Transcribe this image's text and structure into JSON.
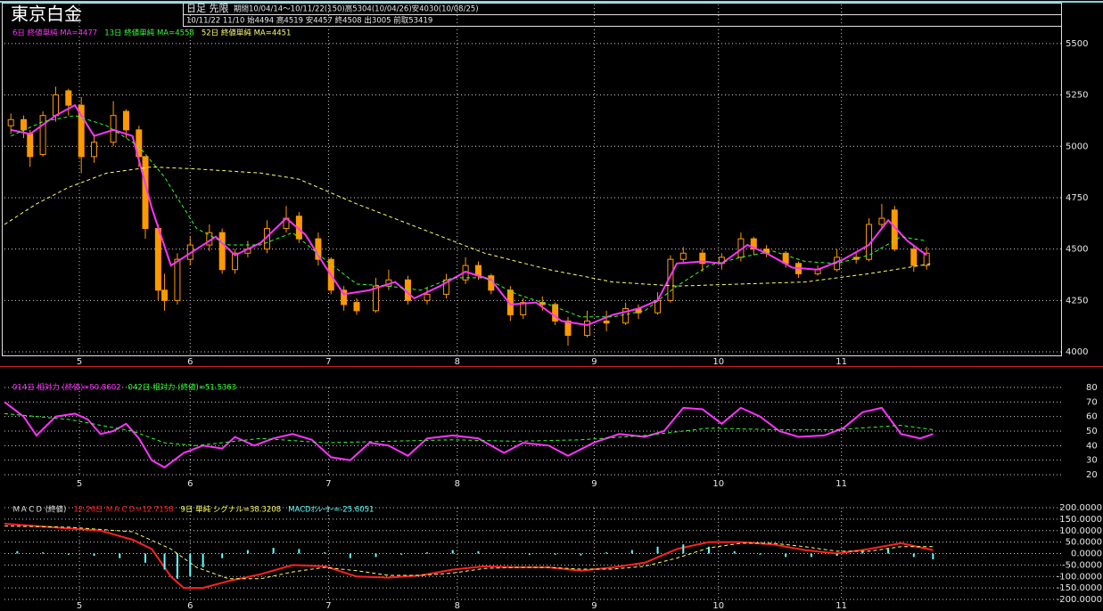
{
  "header": {
    "title": "東京白金",
    "mode": "日足 先限",
    "period": "期間10/04/14～10/11/22(150)高5304(10/04/26)安4030(10/08/25)",
    "quote": "10/11/22 11/10 始4494 高4519 安4457 終4508 出3005 前取53419"
  },
  "chart_data": [
    {
      "type": "candlestick",
      "color": "#ff9900",
      "grid": true,
      "xlim": [
        0,
        165
      ],
      "ylim": [
        3987,
        5582
      ],
      "xticks": [
        {
          "value": 11.7,
          "label": "5"
        },
        {
          "value": 29,
          "label": "6"
        },
        {
          "value": 50.6,
          "label": "7"
        },
        {
          "value": 70.7,
          "label": "8"
        },
        {
          "value": 92.1,
          "label": "9"
        },
        {
          "value": 111.5,
          "label": "10"
        },
        {
          "value": 130.7,
          "label": "11"
        }
      ],
      "yticks": [
        4000,
        4250,
        4500,
        4750,
        5000,
        5250,
        5500
      ],
      "x": [
        1,
        3,
        4,
        6,
        8,
        10,
        12,
        14,
        17,
        19,
        21,
        22,
        24,
        25,
        27,
        29,
        32,
        34,
        36,
        38,
        41,
        44,
        46,
        49,
        51,
        53,
        55,
        58,
        60,
        63,
        66,
        69,
        72,
        74,
        76,
        79,
        81,
        84,
        86,
        88,
        91,
        94,
        97,
        99,
        102,
        104,
        106,
        109,
        112,
        115,
        117,
        119,
        122,
        124,
        127,
        130,
        133,
        135,
        137,
        139,
        142,
        144
      ],
      "open": [
        5100,
        5130,
        5060,
        4960,
        5150,
        5270,
        5200,
        4950,
        5020,
        5170,
        5080,
        4950,
        4600,
        4300,
        4250,
        4450,
        4520,
        4580,
        4400,
        4480,
        4500,
        4600,
        4660,
        4550,
        4450,
        4300,
        4240,
        4200,
        4320,
        4350,
        4250,
        4280,
        4350,
        4420,
        4370,
        4300,
        4180,
        4240,
        4230,
        4150,
        4080,
        4150,
        4140,
        4210,
        4190,
        4250,
        4450,
        4480,
        4430,
        4460,
        4550,
        4500,
        4480,
        4430,
        4380,
        4400,
        4460,
        4450,
        4620,
        4690,
        4500,
        4420
      ],
      "high": [
        5160,
        5150,
        5080,
        5170,
        5290,
        5280,
        5240,
        5060,
        5220,
        5180,
        5100,
        4950,
        4620,
        4380,
        4480,
        4560,
        4620,
        4600,
        4500,
        4540,
        4640,
        4710,
        4680,
        4580,
        4460,
        4320,
        4260,
        4360,
        4400,
        4370,
        4310,
        4380,
        4460,
        4440,
        4380,
        4320,
        4260,
        4270,
        4240,
        4170,
        4200,
        4200,
        4240,
        4230,
        4290,
        4470,
        4510,
        4500,
        4480,
        4580,
        4560,
        4520,
        4490,
        4440,
        4420,
        4500,
        4480,
        4650,
        4720,
        4710,
        4520,
        4510
      ],
      "low": [
        5060,
        5040,
        4900,
        4950,
        5120,
        5150,
        4870,
        4920,
        5000,
        5040,
        4900,
        4550,
        4250,
        4200,
        4230,
        4420,
        4490,
        4380,
        4380,
        4460,
        4480,
        4580,
        4530,
        4420,
        4280,
        4200,
        4180,
        4190,
        4300,
        4230,
        4230,
        4260,
        4330,
        4350,
        4280,
        4150,
        4160,
        4200,
        4130,
        4030,
        4070,
        4100,
        4130,
        4160,
        4180,
        4240,
        4430,
        4390,
        4400,
        4440,
        4470,
        4460,
        4410,
        4360,
        4370,
        4390,
        4430,
        4440,
        4600,
        4490,
        4390,
        4400
      ],
      "close": [
        5130,
        5080,
        4950,
        5150,
        5250,
        5200,
        4950,
        5020,
        5150,
        5080,
        4950,
        4600,
        4300,
        4250,
        4450,
        4520,
        4580,
        4400,
        4480,
        4500,
        4600,
        4650,
        4550,
        4450,
        4300,
        4230,
        4200,
        4320,
        4350,
        4250,
        4280,
        4350,
        4420,
        4370,
        4300,
        4180,
        4240,
        4230,
        4150,
        4080,
        4150,
        4140,
        4210,
        4190,
        4250,
        4450,
        4480,
        4430,
        4460,
        4550,
        4500,
        4480,
        4430,
        4380,
        4400,
        4460,
        4450,
        4620,
        4650,
        4500,
        4420,
        4480
      ],
      "series": [
        {
          "name": "6日 終値単純 MA=4477",
          "color": "#ff33ff",
          "style": "solid",
          "x": [
            1,
            4,
            8,
            11,
            14,
            17,
            20,
            23,
            26,
            29,
            33,
            36,
            40,
            44,
            47,
            50,
            53,
            57,
            61,
            64,
            68,
            72,
            76,
            79,
            83,
            87,
            91,
            95,
            99,
            102,
            105,
            109,
            112,
            116,
            119,
            123,
            127,
            131,
            135,
            138,
            141,
            144
          ],
          "values": [
            5080,
            5060,
            5150,
            5200,
            5050,
            5080,
            5050,
            4700,
            4420,
            4480,
            4560,
            4470,
            4530,
            4650,
            4570,
            4420,
            4280,
            4300,
            4340,
            4260,
            4320,
            4390,
            4350,
            4230,
            4240,
            4150,
            4130,
            4180,
            4210,
            4250,
            4430,
            4440,
            4430,
            4520,
            4480,
            4410,
            4400,
            4450,
            4520,
            4640,
            4540,
            4470
          ]
        },
        {
          "name": "13日 終値単純 MA=4558",
          "color": "#33ff33",
          "style": "dashed",
          "x": [
            1,
            6,
            11,
            16,
            21,
            25,
            30,
            35,
            40,
            45,
            50,
            55,
            60,
            65,
            70,
            75,
            80,
            85,
            90,
            95,
            100,
            105,
            110,
            115,
            120,
            125,
            130,
            135,
            140,
            144
          ],
          "values": [
            5050,
            5120,
            5150,
            5100,
            5000,
            4850,
            4600,
            4520,
            4520,
            4580,
            4450,
            4330,
            4320,
            4300,
            4360,
            4360,
            4280,
            4230,
            4170,
            4170,
            4200,
            4320,
            4420,
            4460,
            4490,
            4440,
            4430,
            4470,
            4560,
            4540
          ]
        },
        {
          "name": "52日 終値単純 MA=4451",
          "color": "#ffff66",
          "style": "dashed",
          "x": [
            0,
            5,
            10,
            16,
            23,
            30,
            40,
            46,
            55,
            65,
            75,
            85,
            95,
            105,
            115,
            125,
            135,
            145
          ],
          "values": [
            4620,
            4720,
            4800,
            4870,
            4900,
            4890,
            4870,
            4840,
            4720,
            4600,
            4480,
            4400,
            4340,
            4320,
            4330,
            4340,
            4380,
            4430
          ]
        }
      ]
    },
    {
      "type": "line",
      "grid": true,
      "xlim": [
        0,
        165
      ],
      "ylim": [
        20,
        80
      ],
      "xticks": [
        {
          "value": 11.7,
          "label": "5"
        },
        {
          "value": 29,
          "label": "6"
        },
        {
          "value": 50.6,
          "label": "7"
        },
        {
          "value": 70.7,
          "label": "8"
        },
        {
          "value": 92.1,
          "label": "9"
        },
        {
          "value": 111.5,
          "label": "10"
        },
        {
          "value": 130.7,
          "label": "11"
        }
      ],
      "yticks": [
        20,
        30,
        40,
        50,
        60,
        70,
        80
      ],
      "series": [
        {
          "name": "014日 相対力 (終値)=50.8602",
          "color": "#ff33ff",
          "style": "solid",
          "x": [
            0,
            3,
            5,
            8,
            11,
            13,
            15,
            17,
            19,
            21,
            23,
            25,
            28,
            31,
            34,
            36,
            39,
            42,
            45,
            48,
            51,
            54,
            57,
            60,
            63,
            66,
            70,
            74,
            78,
            81,
            85,
            88,
            92,
            96,
            100,
            103,
            106,
            109,
            112,
            115,
            118,
            121,
            124,
            128,
            131,
            134,
            137,
            140,
            143,
            145
          ],
          "values": [
            70,
            60,
            47,
            60,
            62,
            58,
            48,
            50,
            55,
            45,
            30,
            25,
            35,
            40,
            38,
            46,
            40,
            45,
            48,
            44,
            32,
            30,
            42,
            40,
            33,
            45,
            47,
            45,
            35,
            42,
            40,
            33,
            42,
            48,
            46,
            50,
            66,
            65,
            55,
            66,
            60,
            50,
            46,
            47,
            52,
            63,
            66,
            48,
            45,
            48
          ]
        },
        {
          "name": "042日 相対力 (終値)=51.5363",
          "color": "#33ff33",
          "style": "dashed",
          "x": [
            0,
            10,
            20,
            25,
            30,
            40,
            50,
            60,
            70,
            80,
            90,
            100,
            110,
            120,
            130,
            140,
            145
          ],
          "values": [
            62,
            58,
            50,
            42,
            40,
            45,
            42,
            43,
            44,
            43,
            44,
            47,
            52,
            51,
            51,
            54,
            51
          ]
        }
      ]
    },
    {
      "type": "line",
      "title": "ＭＡＣＤ (終値)",
      "grid": true,
      "xlim": [
        0,
        165
      ],
      "ylim": [
        -200,
        200
      ],
      "xticks": [
        {
          "value": 11.7,
          "label": "5"
        },
        {
          "value": 29,
          "label": "6"
        },
        {
          "value": 50.6,
          "label": "7"
        },
        {
          "value": 70.7,
          "label": "8"
        },
        {
          "value": 92.1,
          "label": "9"
        },
        {
          "value": 111.5,
          "label": "10"
        },
        {
          "value": 130.7,
          "label": "11"
        }
      ],
      "yticks": [
        {
          "value": 200,
          "label": "200.0000"
        },
        {
          "value": 150,
          "label": "150.0000"
        },
        {
          "value": 100,
          "label": "100.0000"
        },
        {
          "value": 50,
          "label": "50.0000"
        },
        {
          "value": 0,
          "label": "0.0000"
        },
        {
          "value": -50,
          "label": "-50.0000"
        },
        {
          "value": -100,
          "label": "-100.0000"
        },
        {
          "value": -150,
          "label": "-150.0000"
        },
        {
          "value": -200,
          "label": "-200.0000"
        }
      ],
      "series": [
        {
          "name": "12-26日 ＭＡＣＤ=12.7158",
          "color": "#ff2222",
          "style": "solid",
          "x": [
            0,
            5,
            10,
            15,
            20,
            23,
            26,
            28,
            31,
            35,
            40,
            45,
            50,
            55,
            60,
            65,
            70,
            75,
            80,
            85,
            90,
            95,
            100,
            105,
            110,
            115,
            120,
            125,
            130,
            135,
            140,
            145
          ],
          "values": [
            130,
            120,
            110,
            100,
            60,
            20,
            -100,
            -150,
            -150,
            -120,
            -90,
            -50,
            -55,
            -100,
            -105,
            -95,
            -70,
            -55,
            -60,
            -60,
            -75,
            -60,
            -40,
            20,
            50,
            50,
            40,
            15,
            0,
            20,
            45,
            15
          ]
        },
        {
          "name": "9日 単純 シグナル=38.3208",
          "color": "#ffff66",
          "style": "dashed",
          "x": [
            0,
            10,
            20,
            26,
            30,
            35,
            40,
            45,
            50,
            55,
            60,
            65,
            70,
            75,
            80,
            85,
            90,
            95,
            100,
            105,
            110,
            115,
            120,
            125,
            130,
            135,
            140,
            145
          ],
          "values": [
            120,
            115,
            95,
            20,
            -60,
            -110,
            -110,
            -80,
            -60,
            -75,
            -95,
            -95,
            -85,
            -65,
            -60,
            -60,
            -68,
            -68,
            -55,
            -20,
            25,
            45,
            45,
            30,
            10,
            10,
            30,
            30
          ]
        },
        {
          "name": "MACDｵｼﾚｰﾀｰ=-25.6051",
          "color": "#66ffff",
          "style": "bar",
          "x": [
            2,
            6,
            10,
            14,
            18,
            22,
            25,
            27,
            29,
            31,
            34,
            38,
            42,
            46,
            50,
            54,
            58,
            62,
            66,
            70,
            74,
            78,
            82,
            86,
            90,
            94,
            98,
            102,
            106,
            110,
            114,
            118,
            122,
            126,
            130,
            134,
            138,
            142,
            145
          ],
          "values": [
            10,
            5,
            -5,
            -10,
            -20,
            -40,
            -70,
            -110,
            -100,
            -60,
            -20,
            15,
            25,
            20,
            5,
            -20,
            -15,
            -5,
            5,
            15,
            10,
            0,
            -5,
            -5,
            -8,
            5,
            15,
            30,
            40,
            30,
            10,
            -5,
            -15,
            -15,
            -10,
            10,
            20,
            -15,
            -25
          ]
        }
      ]
    }
  ]
}
